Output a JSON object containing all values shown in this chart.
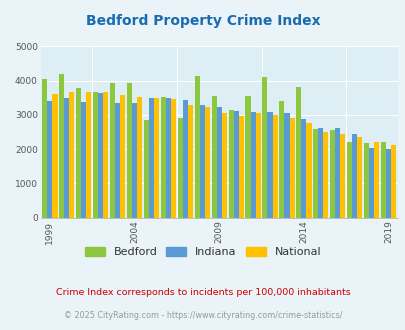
{
  "title": "Bedford Property Crime Index",
  "title_color": "#1a6bb0",
  "years": [
    1999,
    2000,
    2001,
    2002,
    2003,
    2004,
    2005,
    2006,
    2007,
    2008,
    2009,
    2010,
    2011,
    2012,
    2013,
    2014,
    2015,
    2016,
    2017,
    2018,
    2019
  ],
  "bedford": [
    4030,
    4200,
    3780,
    3670,
    3920,
    3920,
    2850,
    3520,
    2900,
    4130,
    3550,
    3130,
    3560,
    4110,
    3400,
    3820,
    2600,
    2560,
    2200,
    2180,
    2200
  ],
  "indiana": [
    3400,
    3490,
    3380,
    3650,
    3340,
    3340,
    3490,
    3490,
    3420,
    3290,
    3230,
    3100,
    3070,
    3070,
    3060,
    2880,
    2620,
    2630,
    2440,
    2030,
    2000
  ],
  "national": [
    3600,
    3680,
    3660,
    3660,
    3580,
    3510,
    3480,
    3460,
    3280,
    3220,
    3060,
    2960,
    3050,
    3000,
    2920,
    2760,
    2490,
    2450,
    2360,
    2200,
    2110
  ],
  "bedford_color": "#8dc63f",
  "indiana_color": "#5b9bd5",
  "national_color": "#ffc000",
  "bg_color": "#eaf3f8",
  "plot_bg_color": "#ddeef5",
  "ylim": [
    0,
    5000
  ],
  "yticks": [
    0,
    1000,
    2000,
    3000,
    4000,
    5000
  ],
  "xlabel_ticks": [
    1999,
    2004,
    2009,
    2014,
    2019
  ],
  "legend_labels": [
    "Bedford",
    "Indiana",
    "National"
  ],
  "footnote1": "Crime Index corresponds to incidents per 100,000 inhabitants",
  "footnote2": "© 2025 CityRating.com - https://www.cityrating.com/crime-statistics/",
  "footnote1_color": "#cc0000",
  "footnote2_color": "#999999"
}
